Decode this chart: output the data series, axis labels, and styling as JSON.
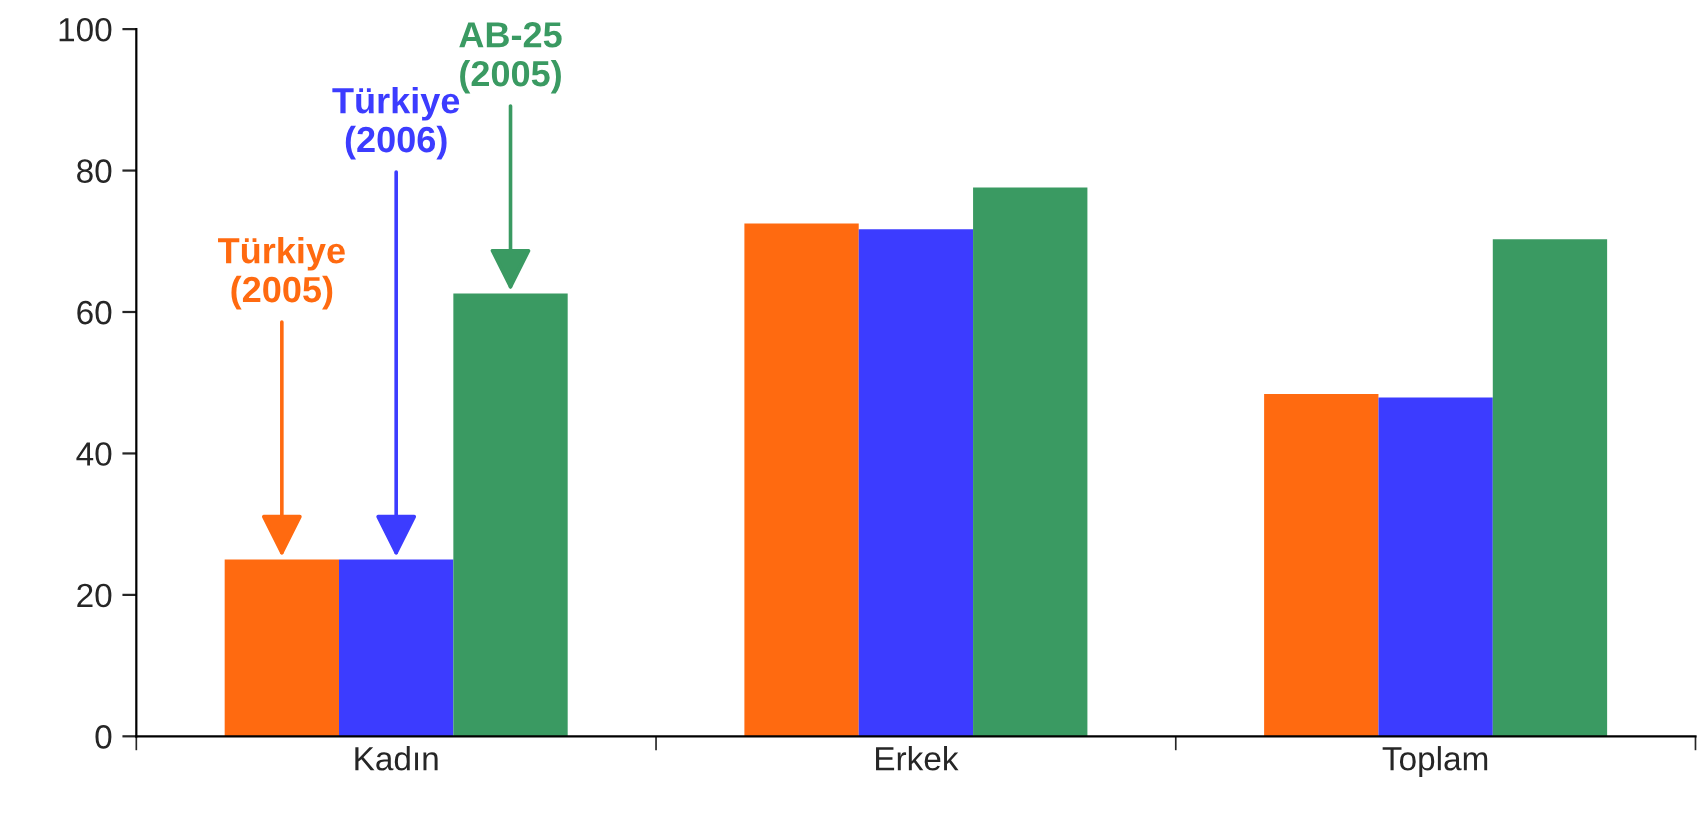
{
  "chart_data": {
    "type": "bar",
    "categories": [
      "Kadın",
      "Erkek",
      "Toplam"
    ],
    "series": [
      {
        "name": "Türkiye\n(2005)",
        "color": "#ff6a10",
        "values": [
          25,
          72.5,
          48.4
        ]
      },
      {
        "name": "Türkiye\n(2006)",
        "color": "#3c3cff",
        "values": [
          25,
          71.7,
          47.9
        ]
      },
      {
        "name": "AB-25\n(2005)",
        "color": "#3a9a62",
        "values": [
          62.6,
          77.6,
          70.3
        ]
      }
    ],
    "ylim": [
      0,
      100
    ],
    "yticks": [
      0,
      20,
      40,
      60,
      80,
      100
    ],
    "grid": false,
    "legend": false
  }
}
